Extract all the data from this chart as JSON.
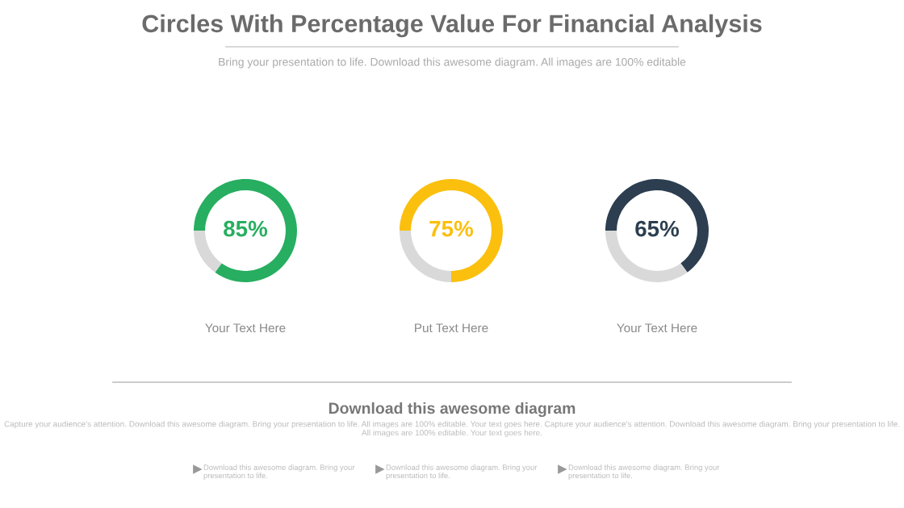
{
  "chart_data": [
    {
      "type": "other",
      "title": "Circles With Percentage Value For Financial Analysis",
      "subtitle": "Bring your presentation to life. Download this awesome diagram. All images are 100% editable"
    },
    {
      "type": "donut",
      "categories": [
        null,
        null
      ],
      "values": [
        85,
        15
      ],
      "colors": [
        "#27ae60",
        "#d9d9d9"
      ],
      "annotations": [
        "85%"
      ],
      "xlabel": "Your Text Here"
    },
    {
      "type": "donut",
      "categories": [
        null,
        null
      ],
      "values": [
        75,
        25
      ],
      "colors": [
        "#fbbf0e",
        "#d9d9d9"
      ],
      "annotations": [
        "75%"
      ],
      "xlabel": "Put Text Here"
    },
    {
      "type": "donut",
      "categories": [
        null,
        null
      ],
      "values": [
        65,
        35
      ],
      "colors": [
        "#2c3e50",
        "#d9d9d9"
      ],
      "annotations": [
        "65%"
      ],
      "xlabel": "Your Text Here"
    },
    {
      "type": "other",
      "title": "Download this awesome diagram",
      "annotations": [
        "Capture your audience's attention. Download this awesome diagram. Bring your presentation to life. All images are 100% editable. Your text goes here. Capture your audience's attention. Download this awesome diagram. Bring your presentation to life. All images are 100% editable. Your text goes here.",
        "Download this awesome diagram. Bring your presentation to life.",
        "Download this awesome diagram. Bring your presentation to life.",
        "Download this awesome diagram. Bring your presentation to life."
      ]
    }
  ]
}
